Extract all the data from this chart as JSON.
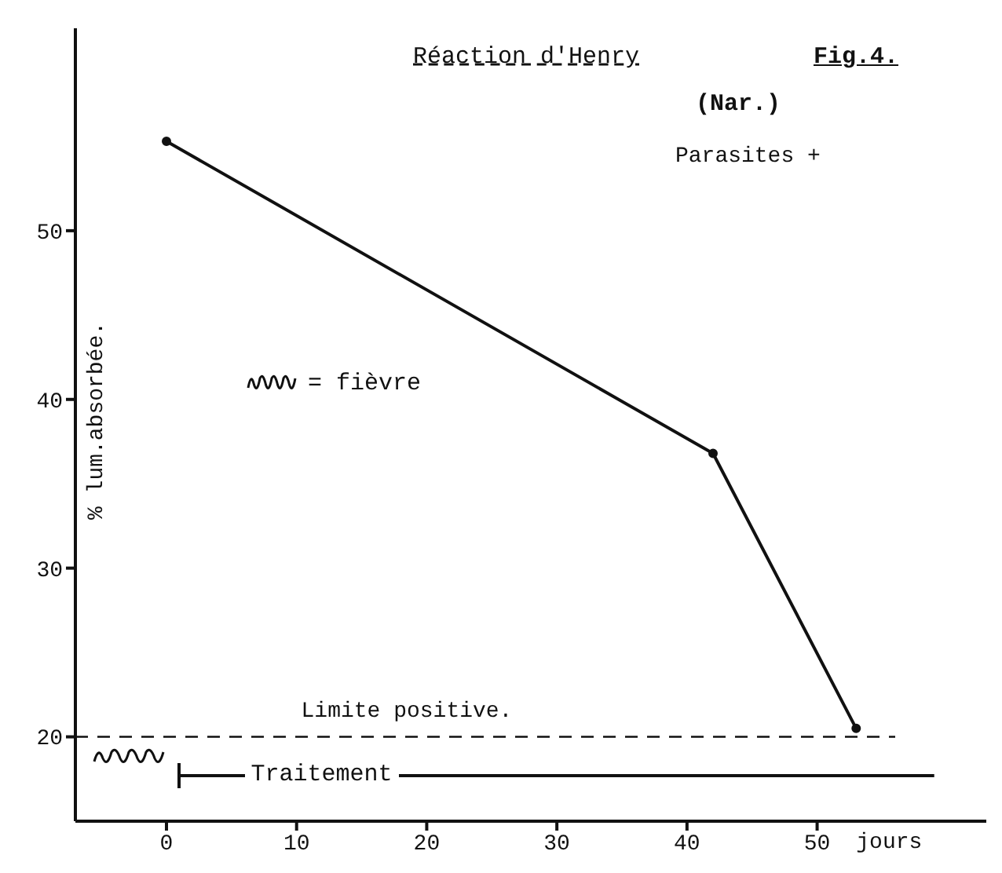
{
  "chart_data": {
    "type": "line",
    "title": "Réaction d'Henry",
    "subtitle": "(Nar.)",
    "xlabel": "jours",
    "ylabel": "% lum.absorbée.",
    "annotations": [
      "Fig.4.",
      "Parasites +",
      "= fièvre"
    ],
    "series": [
      {
        "color": "#111111",
        "x": [
          0,
          42,
          53
        ],
        "values": [
          55.3,
          36.8,
          20.5
        ]
      },
      {
        "name": "Traitement",
        "color": "#111111",
        "x": [
          1,
          59
        ],
        "values": [
          17.7,
          17.7
        ],
        "marker": "none"
      }
    ],
    "ref_lines": [
      {
        "axis": "y",
        "value": 20,
        "label": "Limite positive.",
        "color": "#111111",
        "line_style": "dashed"
      }
    ],
    "xlim": [
      -7,
      63
    ],
    "xticks": [
      0,
      10,
      20,
      30,
      40,
      50
    ],
    "ylim": [
      15,
      62
    ],
    "yticks": [
      20,
      30,
      40,
      50
    ],
    "grid": false,
    "marker": "circle",
    "line_style": "solid"
  }
}
